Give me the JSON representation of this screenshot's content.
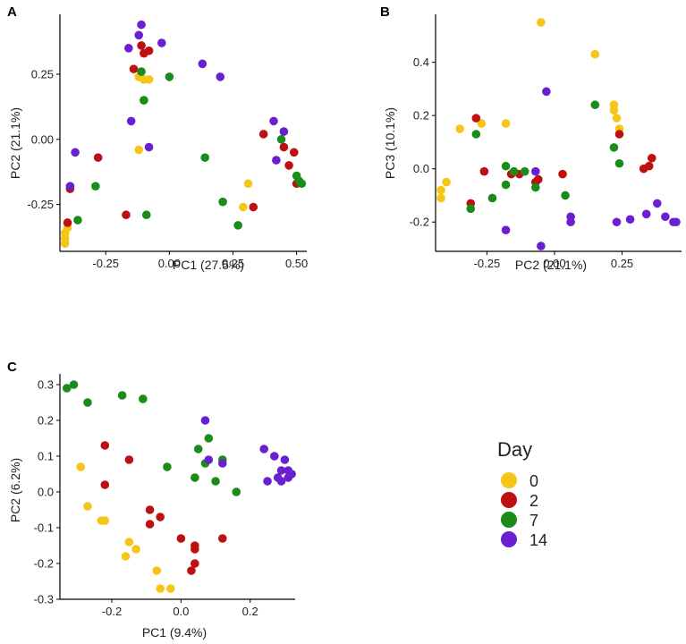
{
  "chart_data": [
    {
      "type": "scatter",
      "panel_label": "A",
      "xlabel": "PC1 (27.5%)",
      "ylabel": "PC2 (21.1%)",
      "xlim": [
        -0.43,
        0.54
      ],
      "ylim": [
        -0.43,
        0.48
      ],
      "xticks": [
        -0.25,
        0.0,
        0.25,
        0.5
      ],
      "xtick_labels": [
        "-0.25",
        "0.00",
        "0.25",
        "0.50"
      ],
      "yticks": [
        -0.25,
        0.0,
        0.25
      ],
      "ytick_labels": [
        "-0.25",
        "0.00",
        "0.25"
      ],
      "series": [
        {
          "name": "0",
          "points": [
            [
              -0.41,
              -0.36
            ],
            [
              -0.41,
              -0.38
            ],
            [
              -0.41,
              -0.4
            ],
            [
              -0.4,
              -0.34
            ],
            [
              -0.12,
              0.24
            ],
            [
              -0.1,
              0.23
            ],
            [
              -0.08,
              0.23
            ],
            [
              -0.1,
              0.15
            ],
            [
              -0.12,
              -0.04
            ],
            [
              0.29,
              -0.26
            ],
            [
              0.31,
              -0.17
            ]
          ]
        },
        {
          "name": "2",
          "points": [
            [
              -0.4,
              -0.32
            ],
            [
              -0.39,
              -0.19
            ],
            [
              -0.28,
              -0.07
            ],
            [
              -0.17,
              -0.29
            ],
            [
              -0.14,
              0.27
            ],
            [
              -0.11,
              0.36
            ],
            [
              -0.1,
              0.33
            ],
            [
              -0.08,
              0.34
            ],
            [
              0.33,
              -0.26
            ],
            [
              0.37,
              0.02
            ],
            [
              0.45,
              -0.03
            ],
            [
              0.47,
              -0.1
            ],
            [
              0.49,
              -0.05
            ],
            [
              0.5,
              -0.17
            ]
          ]
        },
        {
          "name": "7",
          "points": [
            [
              -0.36,
              -0.31
            ],
            [
              -0.29,
              -0.18
            ],
            [
              -0.11,
              0.26
            ],
            [
              -0.1,
              0.15
            ],
            [
              -0.09,
              -0.29
            ],
            [
              0.0,
              0.24
            ],
            [
              0.14,
              -0.07
            ],
            [
              0.21,
              -0.24
            ],
            [
              0.27,
              -0.33
            ],
            [
              0.44,
              0.0
            ],
            [
              0.5,
              -0.14
            ],
            [
              0.51,
              -0.16
            ],
            [
              0.52,
              -0.17
            ]
          ]
        },
        {
          "name": "14",
          "points": [
            [
              -0.39,
              -0.18
            ],
            [
              -0.37,
              -0.05
            ],
            [
              -0.16,
              0.35
            ],
            [
              -0.15,
              0.07
            ],
            [
              -0.12,
              0.4
            ],
            [
              -0.11,
              0.44
            ],
            [
              -0.08,
              -0.03
            ],
            [
              -0.03,
              0.37
            ],
            [
              0.13,
              0.29
            ],
            [
              0.2,
              0.24
            ],
            [
              0.41,
              0.07
            ],
            [
              0.42,
              -0.08
            ],
            [
              0.45,
              0.03
            ]
          ]
        }
      ]
    },
    {
      "type": "scatter",
      "panel_label": "B",
      "xlabel": "PC2 (21.1%)",
      "ylabel": "PC3 (10.1%)",
      "xlim": [
        -0.44,
        0.47
      ],
      "ylim": [
        -0.31,
        0.58
      ],
      "xticks": [
        -0.25,
        0.0,
        0.25
      ],
      "xtick_labels": [
        "-0.25",
        "0.00",
        "0.25"
      ],
      "yticks": [
        -0.2,
        0.0,
        0.2,
        0.4
      ],
      "ytick_labels": [
        "-0.2",
        "0.0",
        "0.2",
        "0.4"
      ],
      "series": [
        {
          "name": "0",
          "points": [
            [
              -0.42,
              -0.08
            ],
            [
              -0.42,
              -0.11
            ],
            [
              -0.4,
              -0.05
            ],
            [
              -0.35,
              0.15
            ],
            [
              -0.27,
              0.17
            ],
            [
              -0.18,
              0.17
            ],
            [
              -0.05,
              0.55
            ],
            [
              0.15,
              0.43
            ],
            [
              0.22,
              0.22
            ],
            [
              0.22,
              0.24
            ],
            [
              0.23,
              0.19
            ],
            [
              0.24,
              0.15
            ]
          ]
        },
        {
          "name": "2",
          "points": [
            [
              -0.31,
              -0.13
            ],
            [
              -0.29,
              0.19
            ],
            [
              -0.26,
              -0.01
            ],
            [
              -0.16,
              -0.02
            ],
            [
              -0.13,
              -0.02
            ],
            [
              -0.07,
              -0.05
            ],
            [
              -0.06,
              -0.04
            ],
            [
              0.03,
              -0.02
            ],
            [
              0.24,
              0.13
            ],
            [
              0.33,
              0.0
            ],
            [
              0.35,
              0.01
            ],
            [
              0.36,
              0.04
            ]
          ]
        },
        {
          "name": "7",
          "points": [
            [
              -0.31,
              -0.15
            ],
            [
              -0.29,
              0.13
            ],
            [
              -0.23,
              -0.11
            ],
            [
              -0.18,
              -0.06
            ],
            [
              -0.18,
              0.01
            ],
            [
              -0.15,
              -0.01
            ],
            [
              -0.11,
              -0.01
            ],
            [
              -0.07,
              -0.07
            ],
            [
              0.04,
              -0.1
            ],
            [
              0.15,
              0.24
            ],
            [
              0.22,
              0.08
            ],
            [
              0.24,
              0.02
            ]
          ]
        },
        {
          "name": "14",
          "points": [
            [
              -0.18,
              -0.23
            ],
            [
              -0.07,
              -0.01
            ],
            [
              -0.05,
              -0.29
            ],
            [
              -0.03,
              0.29
            ],
            [
              0.06,
              -0.18
            ],
            [
              0.06,
              -0.2
            ],
            [
              0.23,
              -0.2
            ],
            [
              0.28,
              -0.19
            ],
            [
              0.34,
              -0.17
            ],
            [
              0.38,
              -0.13
            ],
            [
              0.41,
              -0.18
            ],
            [
              0.44,
              -0.2
            ],
            [
              0.45,
              -0.2
            ]
          ]
        }
      ]
    },
    {
      "type": "scatter",
      "panel_label": "C",
      "xlabel": "PC1 (9.4%)",
      "ylabel": "PC2 (6.2%)",
      "xlim": [
        -0.35,
        0.33
      ],
      "ylim": [
        -0.3,
        0.33
      ],
      "xticks": [
        -0.2,
        0.0,
        0.2
      ],
      "xtick_labels": [
        "-0.2",
        "0.0",
        "0.2"
      ],
      "yticks": [
        -0.3,
        -0.2,
        -0.1,
        0.0,
        0.1,
        0.2,
        0.3
      ],
      "ytick_labels": [
        "-0.3",
        "-0.2",
        "-0.1",
        "0.0",
        "0.1",
        "0.2",
        "0.3"
      ],
      "series": [
        {
          "name": "0",
          "points": [
            [
              -0.29,
              0.07
            ],
            [
              -0.27,
              -0.04
            ],
            [
              -0.23,
              -0.08
            ],
            [
              -0.22,
              -0.08
            ],
            [
              -0.16,
              -0.18
            ],
            [
              -0.15,
              -0.14
            ],
            [
              -0.13,
              -0.16
            ],
            [
              -0.07,
              -0.22
            ],
            [
              -0.06,
              -0.27
            ],
            [
              -0.03,
              -0.27
            ]
          ]
        },
        {
          "name": "2",
          "points": [
            [
              -0.22,
              0.13
            ],
            [
              -0.22,
              0.02
            ],
            [
              -0.15,
              0.09
            ],
            [
              -0.09,
              -0.05
            ],
            [
              -0.09,
              -0.09
            ],
            [
              -0.06,
              -0.07
            ],
            [
              0.0,
              -0.13
            ],
            [
              0.03,
              -0.22
            ],
            [
              0.04,
              -0.15
            ],
            [
              0.04,
              -0.16
            ],
            [
              0.04,
              -0.2
            ],
            [
              0.12,
              -0.13
            ]
          ]
        },
        {
          "name": "7",
          "points": [
            [
              -0.33,
              0.29
            ],
            [
              -0.31,
              0.3
            ],
            [
              -0.27,
              0.25
            ],
            [
              -0.17,
              0.27
            ],
            [
              -0.11,
              0.26
            ],
            [
              -0.04,
              0.07
            ],
            [
              0.04,
              0.04
            ],
            [
              0.05,
              0.12
            ],
            [
              0.07,
              0.08
            ],
            [
              0.08,
              0.15
            ],
            [
              0.1,
              0.03
            ],
            [
              0.12,
              0.09
            ],
            [
              0.16,
              0.0
            ]
          ]
        },
        {
          "name": "14",
          "points": [
            [
              0.07,
              0.2
            ],
            [
              0.08,
              0.09
            ],
            [
              0.12,
              0.08
            ],
            [
              0.24,
              0.12
            ],
            [
              0.25,
              0.03
            ],
            [
              0.27,
              0.1
            ],
            [
              0.28,
              0.04
            ],
            [
              0.29,
              0.03
            ],
            [
              0.29,
              0.06
            ],
            [
              0.3,
              0.09
            ],
            [
              0.31,
              0.06
            ],
            [
              0.31,
              0.04
            ],
            [
              0.32,
              0.05
            ]
          ]
        }
      ]
    }
  ],
  "legend": {
    "title": "Day",
    "items": [
      {
        "label": "0",
        "color": "#F5C518"
      },
      {
        "label": "2",
        "color": "#BE1010"
      },
      {
        "label": "7",
        "color": "#1A8C1A"
      },
      {
        "label": "14",
        "color": "#6A1FD0"
      }
    ]
  }
}
